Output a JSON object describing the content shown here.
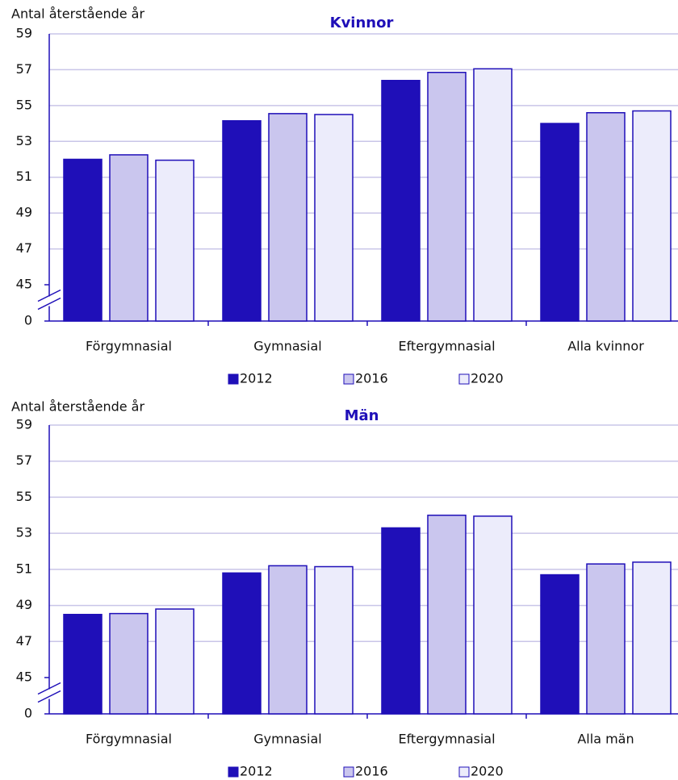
{
  "chart_data": [
    {
      "type": "bar",
      "title": "Kvinnor",
      "y_label": "Antal återstående år",
      "categories": [
        "Förgymnasial",
        "Gymnasial",
        "Eftergymnasial",
        "Alla kvinnor"
      ],
      "series": [
        {
          "name": "2012",
          "color": "#1f0fb8",
          "values": [
            52.0,
            54.15,
            56.4,
            54.0
          ]
        },
        {
          "name": "2016",
          "color": "#cac6ee",
          "values": [
            52.25,
            54.55,
            56.85,
            54.6
          ]
        },
        {
          "name": "2020",
          "color": "#ececfb",
          "values": [
            51.95,
            54.5,
            57.05,
            54.7
          ]
        }
      ],
      "ylim": [
        0,
        59
      ],
      "yticks": [
        0,
        45,
        47,
        49,
        51,
        53,
        55,
        57,
        59
      ],
      "axis_break": [
        0,
        45
      ],
      "grid": true,
      "legend": "bottom",
      "edge_color": "#1f0fb8"
    },
    {
      "type": "bar",
      "title": "Män",
      "y_label": "Antal återstående år",
      "categories": [
        "Förgymnasial",
        "Gymnasial",
        "Eftergymnasial",
        "Alla män"
      ],
      "series": [
        {
          "name": "2012",
          "color": "#1f0fb8",
          "values": [
            48.5,
            50.8,
            53.3,
            50.7
          ]
        },
        {
          "name": "2016",
          "color": "#cac6ee",
          "values": [
            48.55,
            51.2,
            54.0,
            51.3
          ]
        },
        {
          "name": "2020",
          "color": "#ececfb",
          "values": [
            48.8,
            51.15,
            53.95,
            51.4
          ]
        }
      ],
      "ylim": [
        0,
        59
      ],
      "yticks": [
        0,
        45,
        47,
        49,
        51,
        53,
        55,
        57,
        59
      ],
      "axis_break": [
        0,
        45
      ],
      "grid": true,
      "legend": "bottom",
      "edge_color": "#1f0fb8"
    }
  ]
}
